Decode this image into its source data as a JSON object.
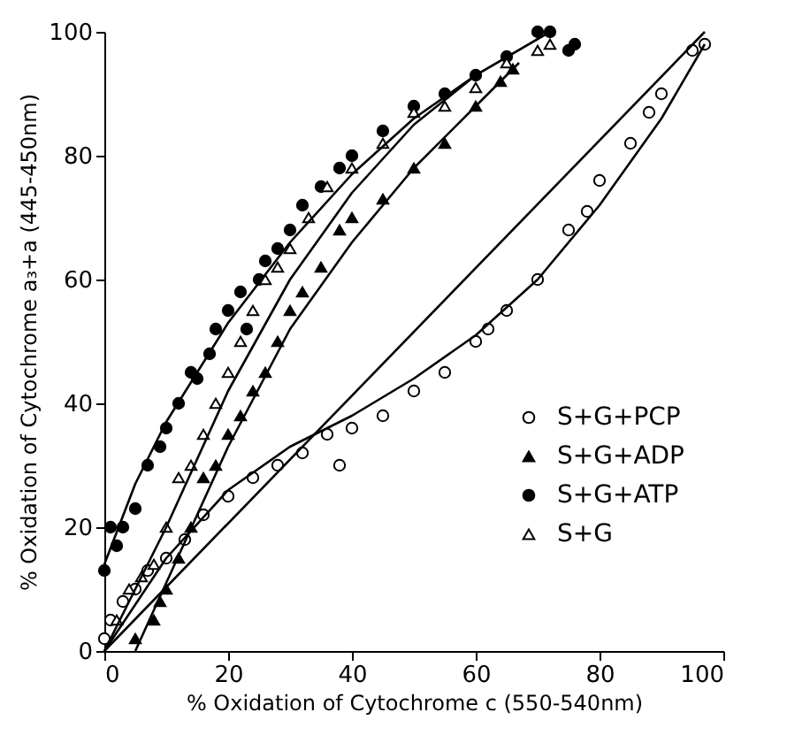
{
  "chart_data": {
    "type": "scatter",
    "xlabel": "% Oxidation of Cytochrome c (550-540nm)",
    "ylabel": "% Oxidation of Cytochrome a₃+a (445-450nm)",
    "xlim": [
      0,
      100
    ],
    "ylim": [
      0,
      100
    ],
    "xticks": [
      0,
      20,
      40,
      60,
      80,
      100
    ],
    "yticks": [
      0,
      20,
      40,
      60,
      80,
      100
    ],
    "legend": "right",
    "series": [
      {
        "name": "S+G+PCP",
        "type": "scatter",
        "marker": "circle",
        "color": "#ffffff",
        "x": [
          0,
          1,
          3,
          5,
          7,
          10,
          13,
          16,
          20,
          24,
          28,
          32,
          36,
          38,
          40,
          45,
          50,
          55,
          60,
          62,
          65,
          70,
          75,
          78,
          80,
          85,
          88,
          90,
          95,
          97
        ],
        "values": [
          2,
          5,
          8,
          10,
          13,
          15,
          18,
          22,
          25,
          28,
          30,
          32,
          35,
          30,
          36,
          38,
          42,
          45,
          50,
          52,
          55,
          60,
          68,
          71,
          76,
          82,
          87,
          90,
          97,
          98
        ]
      },
      {
        "name": "S+G+ADP",
        "type": "scatter",
        "marker": "triangle",
        "color": "#000000",
        "x": [
          5,
          8,
          9,
          10,
          12,
          14,
          16,
          18,
          20,
          22,
          24,
          26,
          28,
          30,
          32,
          35,
          38,
          40,
          45,
          50,
          55,
          60,
          64,
          66
        ],
        "values": [
          2,
          5,
          8,
          10,
          15,
          20,
          28,
          30,
          35,
          38,
          42,
          45,
          50,
          55,
          58,
          62,
          68,
          70,
          73,
          78,
          82,
          88,
          92,
          94
        ]
      },
      {
        "name": "S+G+ATP",
        "type": "scatter",
        "marker": "circle",
        "color": "#000000",
        "x": [
          0,
          1,
          2,
          3,
          5,
          7,
          9,
          10,
          12,
          14,
          15,
          17,
          18,
          20,
          22,
          23,
          25,
          26,
          28,
          30,
          32,
          35,
          38,
          40,
          45,
          50,
          55,
          60,
          65,
          70,
          72,
          75,
          76
        ],
        "values": [
          13,
          20,
          17,
          20,
          23,
          30,
          33,
          36,
          40,
          45,
          44,
          48,
          52,
          55,
          58,
          52,
          60,
          63,
          65,
          68,
          72,
          75,
          78,
          80,
          84,
          88,
          90,
          93,
          96,
          100,
          100,
          97,
          98
        ]
      },
      {
        "name": "S+G",
        "type": "scatter",
        "marker": "triangle",
        "color": "#ffffff",
        "x": [
          2,
          4,
          6,
          8,
          10,
          12,
          14,
          16,
          18,
          20,
          22,
          24,
          26,
          28,
          30,
          33,
          36,
          40,
          45,
          50,
          55,
          60,
          65,
          70,
          72
        ],
        "values": [
          5,
          10,
          12,
          14,
          20,
          28,
          30,
          35,
          40,
          45,
          50,
          55,
          60,
          62,
          65,
          70,
          75,
          78,
          82,
          87,
          88,
          91,
          95,
          97,
          98
        ]
      },
      {
        "type": "line",
        "color": "#000000",
        "x": [
          0,
          5,
          10,
          20,
          30,
          40,
          50,
          60,
          72
        ],
        "values": [
          14,
          27,
          37,
          53,
          66,
          77,
          86,
          93,
          100
        ]
      },
      {
        "type": "line",
        "color": "#000000",
        "x": [
          0,
          10,
          20,
          30,
          40,
          50,
          60,
          72
        ],
        "values": [
          0,
          20,
          42,
          60,
          74,
          85,
          93,
          100
        ]
      },
      {
        "type": "line",
        "color": "#000000",
        "x": [
          5,
          10,
          20,
          30,
          40,
          50,
          60,
          67
        ],
        "values": [
          0,
          11,
          33,
          52,
          66,
          78,
          88,
          95
        ]
      },
      {
        "type": "line",
        "color": "#000000",
        "x": [
          0,
          10,
          20,
          30,
          40,
          50,
          60,
          70,
          80,
          90,
          97
        ],
        "values": [
          0,
          15,
          26,
          33,
          38,
          44,
          51,
          60,
          72,
          86,
          98
        ]
      },
      {
        "type": "line",
        "color": "#000000",
        "x": [
          0,
          97
        ],
        "values": [
          0,
          100
        ]
      }
    ]
  }
}
